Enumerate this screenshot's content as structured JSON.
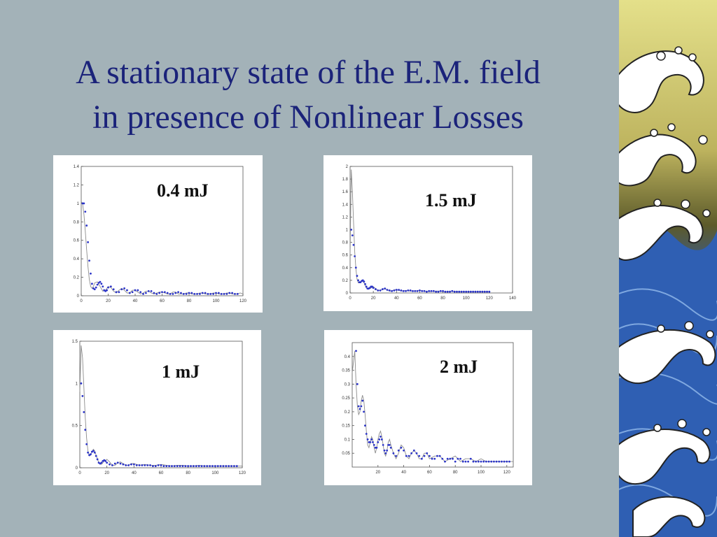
{
  "slide": {
    "title_line1": "A stationary state of the E.M. field",
    "title_line2": "in presence of Nonlinear Losses"
  },
  "colors": {
    "background": "#a3b2b8",
    "title": "#1b237a",
    "marker": "#2b34c8",
    "curve": "#8c8c8c"
  },
  "chart_data": [
    {
      "type": "scatter",
      "energy_label": "0.4 mJ",
      "xlim": [
        0,
        120
      ],
      "ylim": [
        0,
        1.4
      ],
      "xticks": [
        0,
        20,
        40,
        60,
        80,
        100,
        120
      ],
      "yticks": [
        0,
        0.2,
        0.4,
        0.6,
        0.8,
        1,
        1.2,
        1.4
      ],
      "series": [
        {
          "kind": "curve",
          "x": [
            0,
            1,
            2,
            3,
            4,
            5,
            6,
            7,
            8,
            9,
            10,
            12,
            14,
            16,
            18,
            20,
            22,
            24,
            26,
            28,
            30,
            32,
            34,
            36,
            38,
            40,
            42,
            44,
            46,
            48,
            50,
            52,
            54,
            56,
            58,
            60,
            62,
            64,
            66,
            68,
            70,
            72,
            74,
            76,
            78,
            80,
            82,
            84,
            86,
            88,
            90,
            92,
            94,
            96,
            98,
            100,
            102,
            104,
            106,
            108,
            110,
            112,
            114,
            116,
            118,
            120
          ],
          "y": [
            1.02,
            1.0,
            0.88,
            0.7,
            0.5,
            0.32,
            0.18,
            0.1,
            0.08,
            0.1,
            0.14,
            0.15,
            0.1,
            0.05,
            0.06,
            0.1,
            0.09,
            0.05,
            0.03,
            0.06,
            0.08,
            0.06,
            0.03,
            0.03,
            0.06,
            0.06,
            0.04,
            0.02,
            0.03,
            0.05,
            0.05,
            0.03,
            0.02,
            0.03,
            0.04,
            0.04,
            0.03,
            0.02,
            0.02,
            0.04,
            0.04,
            0.02,
            0.02,
            0.02,
            0.03,
            0.03,
            0.02,
            0.02,
            0.02,
            0.03,
            0.03,
            0.02,
            0.02,
            0.02,
            0.03,
            0.03,
            0.02,
            0.02,
            0.02,
            0.03,
            0.03,
            0.02,
            0.02,
            0.02,
            0.03,
            0.02
          ]
        },
        {
          "kind": "markers",
          "x": [
            1,
            2,
            3,
            4,
            5,
            6,
            7,
            8,
            9,
            10,
            11,
            12,
            13,
            14,
            15,
            16,
            17,
            18,
            19,
            20,
            22,
            24,
            26,
            28,
            30,
            32,
            34,
            36,
            38,
            40,
            42,
            44,
            46,
            48,
            50,
            52,
            54,
            56,
            58,
            60,
            62,
            64,
            66,
            68,
            70,
            72,
            74,
            76,
            78,
            80,
            82,
            84,
            86,
            88,
            90,
            92,
            94,
            96,
            98,
            100,
            102,
            104,
            106,
            108,
            110,
            112,
            114,
            116
          ],
          "y": [
            1.0,
            1.0,
            0.91,
            0.76,
            0.58,
            0.38,
            0.24,
            0.13,
            0.08,
            0.07,
            0.09,
            0.12,
            0.14,
            0.15,
            0.13,
            0.1,
            0.06,
            0.05,
            0.06,
            0.09,
            0.1,
            0.07,
            0.04,
            0.04,
            0.07,
            0.08,
            0.06,
            0.03,
            0.04,
            0.06,
            0.06,
            0.04,
            0.02,
            0.03,
            0.05,
            0.05,
            0.03,
            0.02,
            0.03,
            0.04,
            0.04,
            0.03,
            0.02,
            0.02,
            0.03,
            0.04,
            0.03,
            0.02,
            0.02,
            0.03,
            0.03,
            0.02,
            0.02,
            0.02,
            0.03,
            0.03,
            0.02,
            0.02,
            0.02,
            0.03,
            0.03,
            0.02,
            0.02,
            0.02,
            0.03,
            0.03,
            0.02,
            0.02
          ]
        }
      ]
    },
    {
      "type": "scatter",
      "energy_label": "1.5 mJ",
      "xlim": [
        0,
        140
      ],
      "ylim": [
        0,
        2
      ],
      "xticks": [
        0,
        20,
        40,
        60,
        80,
        100,
        120,
        140
      ],
      "yticks": [
        0,
        0.2,
        0.4,
        0.6,
        0.8,
        1,
        1.2,
        1.4,
        1.6,
        1.8,
        2
      ],
      "series": [
        {
          "kind": "curve",
          "x": [
            0,
            1,
            2,
            3,
            4,
            5,
            6,
            7,
            8,
            9,
            10,
            12,
            14,
            16,
            18,
            20,
            22,
            24,
            26,
            28,
            30,
            32,
            34,
            36,
            38,
            40,
            44,
            48,
            52,
            56,
            60,
            64,
            68,
            72,
            76,
            80,
            84,
            88,
            92,
            96,
            100,
            104,
            108,
            112,
            116,
            120
          ],
          "y": [
            0.6,
            1.95,
            1.6,
            1.1,
            0.65,
            0.38,
            0.22,
            0.16,
            0.16,
            0.18,
            0.2,
            0.16,
            0.08,
            0.06,
            0.08,
            0.1,
            0.07,
            0.04,
            0.04,
            0.06,
            0.07,
            0.05,
            0.03,
            0.03,
            0.05,
            0.05,
            0.03,
            0.04,
            0.03,
            0.03,
            0.04,
            0.03,
            0.02,
            0.03,
            0.03,
            0.02,
            0.02,
            0.03,
            0.02,
            0.02,
            0.02,
            0.02,
            0.02,
            0.02,
            0.02,
            0.02
          ]
        },
        {
          "kind": "markers",
          "x": [
            1,
            2,
            3,
            4,
            5,
            6,
            7,
            8,
            9,
            10,
            11,
            12,
            13,
            14,
            15,
            16,
            17,
            18,
            19,
            20,
            22,
            24,
            26,
            28,
            30,
            32,
            34,
            36,
            38,
            40,
            42,
            44,
            46,
            48,
            50,
            52,
            54,
            56,
            58,
            60,
            62,
            64,
            66,
            68,
            70,
            72,
            74,
            76,
            78,
            80,
            82,
            84,
            86,
            88,
            90,
            92,
            94,
            96,
            98,
            100,
            102,
            104,
            106,
            108,
            110,
            112,
            114,
            116,
            118,
            120
          ],
          "y": [
            1.0,
            0.91,
            0.76,
            0.58,
            0.4,
            0.27,
            0.2,
            0.17,
            0.17,
            0.19,
            0.2,
            0.18,
            0.14,
            0.1,
            0.07,
            0.07,
            0.08,
            0.1,
            0.1,
            0.08,
            0.06,
            0.04,
            0.04,
            0.06,
            0.07,
            0.05,
            0.04,
            0.03,
            0.04,
            0.05,
            0.05,
            0.04,
            0.03,
            0.03,
            0.04,
            0.04,
            0.03,
            0.03,
            0.03,
            0.04,
            0.03,
            0.03,
            0.02,
            0.03,
            0.03,
            0.03,
            0.02,
            0.02,
            0.03,
            0.03,
            0.02,
            0.02,
            0.02,
            0.03,
            0.02,
            0.02,
            0.02,
            0.02,
            0.02,
            0.02,
            0.02,
            0.02,
            0.02,
            0.02,
            0.02,
            0.02,
            0.02,
            0.02,
            0.02,
            0.02
          ]
        }
      ]
    },
    {
      "type": "scatter",
      "energy_label": "1 mJ",
      "xlim": [
        0,
        120
      ],
      "ylim": [
        0,
        1.5
      ],
      "xticks": [
        0,
        20,
        40,
        60,
        80,
        100,
        120
      ],
      "yticks": [
        0,
        0.5,
        1,
        1.5
      ],
      "series": [
        {
          "kind": "curve",
          "x": [
            0,
            1,
            2,
            3,
            4,
            5,
            6,
            7,
            8,
            9,
            10,
            11,
            12,
            14,
            16,
            18,
            20,
            22,
            24,
            26,
            28,
            30,
            32,
            34,
            36,
            38,
            40,
            44,
            48,
            52,
            56,
            60,
            64,
            68,
            72,
            76,
            80,
            84,
            88,
            92,
            96,
            100,
            104,
            108,
            112,
            116,
            120
          ],
          "y": [
            0.9,
            1.45,
            1.3,
            0.95,
            0.6,
            0.35,
            0.2,
            0.14,
            0.15,
            0.19,
            0.22,
            0.2,
            0.15,
            0.06,
            0.04,
            0.08,
            0.1,
            0.07,
            0.03,
            0.03,
            0.06,
            0.07,
            0.05,
            0.03,
            0.03,
            0.05,
            0.05,
            0.03,
            0.04,
            0.03,
            0.03,
            0.04,
            0.03,
            0.02,
            0.03,
            0.03,
            0.02,
            0.02,
            0.03,
            0.02,
            0.02,
            0.02,
            0.02,
            0.02,
            0.02,
            0.02,
            0.02
          ]
        },
        {
          "kind": "markers",
          "x": [
            1,
            2,
            3,
            4,
            5,
            6,
            7,
            8,
            9,
            10,
            11,
            12,
            13,
            14,
            15,
            16,
            17,
            18,
            19,
            20,
            22,
            24,
            26,
            28,
            30,
            32,
            34,
            36,
            38,
            40,
            42,
            44,
            46,
            48,
            50,
            52,
            54,
            56,
            58,
            60,
            62,
            64,
            66,
            68,
            70,
            72,
            74,
            76,
            78,
            80,
            82,
            84,
            86,
            88,
            90,
            92,
            94,
            96,
            98,
            100,
            102,
            104,
            106,
            108,
            110,
            112,
            114,
            116
          ],
          "y": [
            1.0,
            0.85,
            0.66,
            0.45,
            0.28,
            0.18,
            0.15,
            0.16,
            0.19,
            0.2,
            0.18,
            0.14,
            0.1,
            0.06,
            0.05,
            0.06,
            0.08,
            0.09,
            0.08,
            0.06,
            0.04,
            0.03,
            0.05,
            0.06,
            0.05,
            0.04,
            0.03,
            0.03,
            0.04,
            0.04,
            0.03,
            0.03,
            0.03,
            0.03,
            0.03,
            0.03,
            0.02,
            0.02,
            0.03,
            0.03,
            0.02,
            0.02,
            0.02,
            0.02,
            0.02,
            0.02,
            0.02,
            0.02,
            0.02,
            0.02,
            0.02,
            0.02,
            0.02,
            0.02,
            0.02,
            0.02,
            0.02,
            0.02,
            0.02,
            0.02,
            0.02,
            0.02,
            0.02,
            0.02,
            0.02,
            0.02,
            0.02,
            0.02
          ]
        }
      ]
    },
    {
      "type": "scatter",
      "energy_label": "2 mJ",
      "xlim": [
        0,
        125
      ],
      "ylim": [
        0,
        0.45
      ],
      "xticks": [
        20,
        40,
        60,
        80,
        100,
        120
      ],
      "yticks": [
        0.05,
        0.1,
        0.15,
        0.2,
        0.25,
        0.3,
        0.35,
        0.4
      ],
      "series": [
        {
          "kind": "curve",
          "x": [
            0,
            2,
            3,
            4,
            5,
            6,
            7,
            8,
            9,
            10,
            11,
            12,
            13,
            14,
            15,
            16,
            17,
            18,
            19,
            20,
            21,
            22,
            23,
            24,
            25,
            26,
            27,
            28,
            29,
            30,
            32,
            34,
            36,
            38,
            40,
            42,
            44,
            46,
            48,
            50,
            52,
            54,
            56,
            58,
            60,
            64,
            68,
            72,
            76,
            80,
            84,
            88,
            92,
            96,
            100,
            104,
            108,
            112,
            116,
            120,
            125
          ],
          "y": [
            0.34,
            0.42,
            0.3,
            0.22,
            0.19,
            0.2,
            0.24,
            0.26,
            0.24,
            0.19,
            0.13,
            0.08,
            0.07,
            0.09,
            0.11,
            0.1,
            0.07,
            0.05,
            0.07,
            0.1,
            0.12,
            0.13,
            0.11,
            0.08,
            0.05,
            0.04,
            0.06,
            0.09,
            0.1,
            0.08,
            0.05,
            0.03,
            0.05,
            0.08,
            0.07,
            0.04,
            0.03,
            0.05,
            0.06,
            0.05,
            0.03,
            0.03,
            0.05,
            0.05,
            0.03,
            0.04,
            0.04,
            0.02,
            0.03,
            0.04,
            0.02,
            0.03,
            0.03,
            0.02,
            0.03,
            0.02,
            0.02,
            0.02,
            0.02,
            0.02,
            0.02
          ]
        },
        {
          "kind": "markers",
          "x": [
            3,
            4,
            5,
            6,
            7,
            8,
            9,
            10,
            11,
            12,
            13,
            14,
            15,
            16,
            17,
            18,
            19,
            20,
            21,
            22,
            23,
            24,
            25,
            26,
            27,
            28,
            29,
            30,
            32,
            34,
            36,
            38,
            40,
            42,
            44,
            46,
            48,
            50,
            52,
            54,
            56,
            58,
            60,
            62,
            64,
            66,
            68,
            70,
            72,
            74,
            76,
            78,
            80,
            82,
            84,
            86,
            88,
            90,
            92,
            94,
            96,
            98,
            100,
            102,
            104,
            106,
            108,
            110,
            112,
            114,
            116,
            118,
            120,
            122
          ],
          "y": [
            0.42,
            0.3,
            0.22,
            0.21,
            0.22,
            0.24,
            0.2,
            0.15,
            0.12,
            0.1,
            0.09,
            0.09,
            0.1,
            0.09,
            0.08,
            0.07,
            0.07,
            0.09,
            0.1,
            0.11,
            0.1,
            0.08,
            0.06,
            0.05,
            0.06,
            0.08,
            0.08,
            0.07,
            0.05,
            0.04,
            0.06,
            0.07,
            0.06,
            0.04,
            0.04,
            0.05,
            0.06,
            0.05,
            0.04,
            0.03,
            0.04,
            0.05,
            0.04,
            0.03,
            0.03,
            0.04,
            0.04,
            0.03,
            0.02,
            0.03,
            0.03,
            0.03,
            0.02,
            0.03,
            0.03,
            0.02,
            0.02,
            0.02,
            0.03,
            0.02,
            0.02,
            0.02,
            0.02,
            0.02,
            0.02,
            0.02,
            0.02,
            0.02,
            0.02,
            0.02,
            0.02,
            0.02,
            0.02,
            0.02
          ]
        }
      ]
    }
  ]
}
